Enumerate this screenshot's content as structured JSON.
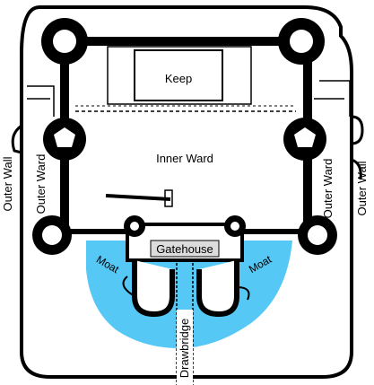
{
  "diagram": {
    "labels": {
      "keep": "Keep",
      "inner_ward": "Inner Ward",
      "gatehouse": "Gatehouse",
      "moat_left": "Moat",
      "moat_right": "Moat",
      "drawbridge": "Drawbridge",
      "outer_wall_far_left": "Outer Wall",
      "outer_ward_left": "Outer Ward",
      "outer_ward_right": "Outer Ward",
      "outer_wall_far_right": "Outer Wall"
    },
    "colors": {
      "wall": "#000000",
      "moat": "#55c8f5",
      "gatehouse_label_bg": "#dcdcdc",
      "ground": "#ffffff"
    }
  }
}
